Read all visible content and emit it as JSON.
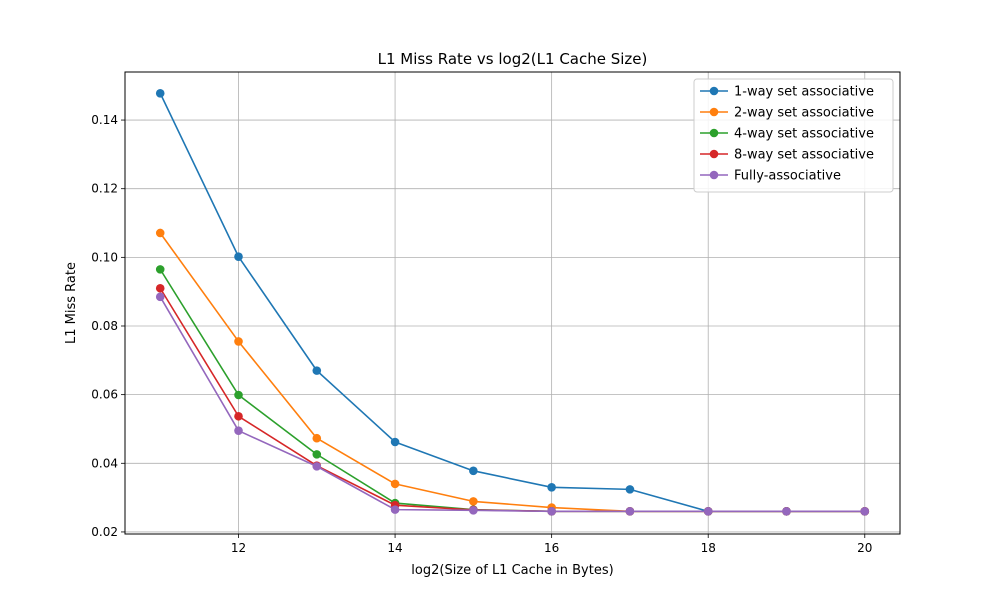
{
  "chart_data": {
    "type": "line",
    "title": "L1 Miss Rate vs log2(L1 Cache Size)",
    "xlabel": "log2(Size of L1 Cache in Bytes)",
    "ylabel": "L1 Miss Rate",
    "x": [
      11,
      12,
      13,
      14,
      15,
      16,
      17,
      18,
      19,
      20
    ],
    "xlim": [
      10.55,
      20.45
    ],
    "ylim": [
      0.0194,
      0.154
    ],
    "xticks": [
      12,
      14,
      16,
      18,
      20
    ],
    "yticks": [
      0.02,
      0.04,
      0.06,
      0.08,
      0.1,
      0.12,
      0.14
    ],
    "ytick_labels": [
      "0.02",
      "0.04",
      "0.06",
      "0.08",
      "0.10",
      "0.12",
      "0.14"
    ],
    "grid": true,
    "legend_position": "top-right",
    "series": [
      {
        "name": "1-way set associative",
        "color": "#1f77b4",
        "values": [
          0.1478,
          0.1002,
          0.067,
          0.0462,
          0.0378,
          0.033,
          0.0324,
          0.026,
          0.026,
          0.026
        ]
      },
      {
        "name": "2-way set associative",
        "color": "#ff7f0e",
        "values": [
          0.1071,
          0.0755,
          0.0473,
          0.034,
          0.0289,
          0.0271,
          0.026,
          0.026,
          0.026,
          0.026
        ]
      },
      {
        "name": "4-way set associative",
        "color": "#2ca02c",
        "values": [
          0.0965,
          0.0599,
          0.0426,
          0.0284,
          0.0265,
          0.026,
          0.026,
          0.026,
          0.026,
          0.026
        ]
      },
      {
        "name": "8-way set associative",
        "color": "#d62728",
        "values": [
          0.091,
          0.0537,
          0.0393,
          0.0278,
          0.0264,
          0.026,
          0.026,
          0.026,
          0.026,
          0.026
        ]
      },
      {
        "name": "Fully-associative",
        "color": "#9467bd",
        "values": [
          0.0885,
          0.0495,
          0.0391,
          0.0265,
          0.0263,
          0.026,
          0.026,
          0.026,
          0.026,
          0.026
        ]
      }
    ]
  }
}
